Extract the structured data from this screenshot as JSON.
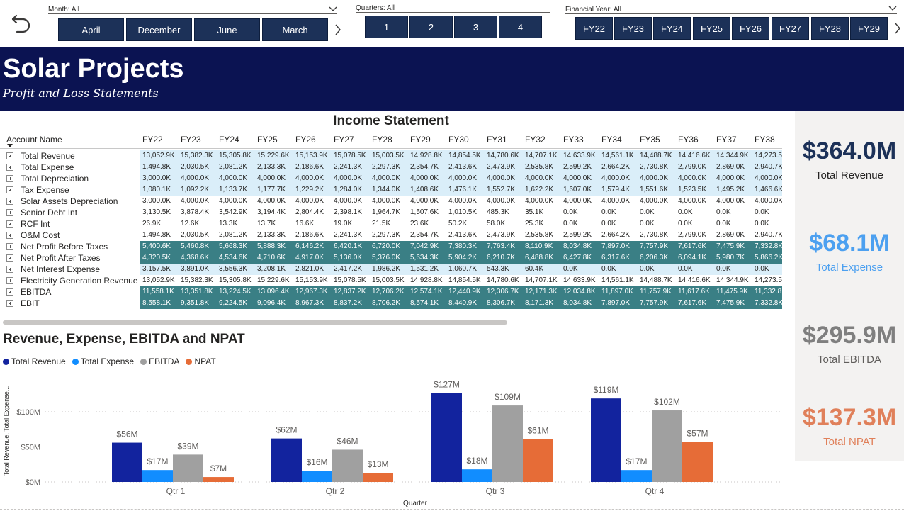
{
  "slicers": {
    "month": {
      "label": "Month: All",
      "buttons": [
        "April",
        "December",
        "June",
        "March"
      ]
    },
    "quarters": {
      "label": "Quarters: All",
      "buttons": [
        "1",
        "2",
        "3",
        "4"
      ]
    },
    "financial_year": {
      "label": "Financial Year: All",
      "buttons": [
        "FY22",
        "FY23",
        "FY24",
        "FY25",
        "FY26",
        "FY27",
        "FY28",
        "FY29"
      ]
    }
  },
  "banner": {
    "title": "Solar Projects",
    "subtitle": "Profit and Loss Statements"
  },
  "income_statement": {
    "title": "Income Statement",
    "account_header": "Account Name",
    "years": [
      "FY22",
      "FY23",
      "FY24",
      "FY25",
      "FY26",
      "FY27",
      "FY28",
      "FY29",
      "FY30",
      "FY31",
      "FY32",
      "FY33",
      "FY34",
      "FY35",
      "FY36",
      "FY37",
      "FY38"
    ],
    "rows": [
      {
        "name": "Total Revenue",
        "style": "light",
        "values": [
          "13,052.9K",
          "15,382.3K",
          "15,305.8K",
          "15,229.6K",
          "15,153.9K",
          "15,078.5K",
          "15,003.5K",
          "14,928.8K",
          "14,854.5K",
          "14,780.6K",
          "14,707.1K",
          "14,633.9K",
          "14,561.1K",
          "14,488.7K",
          "14,416.6K",
          "14,344.9K",
          "14,273.5"
        ]
      },
      {
        "name": "Total Expense",
        "style": "light",
        "values": [
          "1,494.8K",
          "2,030.5K",
          "2,081.2K",
          "2,133.3K",
          "2,186.6K",
          "2,241.3K",
          "2,297.3K",
          "2,354.7K",
          "2,413.6K",
          "2,473.9K",
          "2,535.8K",
          "2,599.2K",
          "2,664.2K",
          "2,730.8K",
          "2,799.0K",
          "2,869.0K",
          "2,940.7K"
        ]
      },
      {
        "name": "Total Depreciation",
        "style": "light",
        "values": [
          "3,000.0K",
          "4,000.0K",
          "4,000.0K",
          "4,000.0K",
          "4,000.0K",
          "4,000.0K",
          "4,000.0K",
          "4,000.0K",
          "4,000.0K",
          "4,000.0K",
          "4,000.0K",
          "4,000.0K",
          "4,000.0K",
          "4,000.0K",
          "4,000.0K",
          "4,000.0K",
          "4,000.0K"
        ]
      },
      {
        "name": "Tax Expense",
        "style": "light",
        "values": [
          "1,080.1K",
          "1,092.2K",
          "1,133.7K",
          "1,177.7K",
          "1,229.2K",
          "1,284.0K",
          "1,344.0K",
          "1,408.6K",
          "1,476.1K",
          "1,552.7K",
          "1,622.2K",
          "1,607.0K",
          "1,579.4K",
          "1,551.6K",
          "1,523.5K",
          "1,495.2K",
          "1,466.6K"
        ]
      },
      {
        "name": "Solar Assets Depreciation",
        "style": "white",
        "values": [
          "3,000.0K",
          "4,000.0K",
          "4,000.0K",
          "4,000.0K",
          "4,000.0K",
          "4,000.0K",
          "4,000.0K",
          "4,000.0K",
          "4,000.0K",
          "4,000.0K",
          "4,000.0K",
          "4,000.0K",
          "4,000.0K",
          "4,000.0K",
          "4,000.0K",
          "4,000.0K",
          "4,000.0K"
        ]
      },
      {
        "name": "Senior Debt Int",
        "style": "white",
        "values": [
          "3,130.5K",
          "3,878.4K",
          "3,542.9K",
          "3,194.4K",
          "2,804.4K",
          "2,398.1K",
          "1,964.7K",
          "1,507.6K",
          "1,010.5K",
          "485.3K",
          "35.1K",
          "0.0K",
          "0.0K",
          "0.0K",
          "0.0K",
          "0.0K",
          "0.0K"
        ]
      },
      {
        "name": "RCF Int",
        "style": "white",
        "values": [
          "26.9K",
          "12.6K",
          "13.3K",
          "13.7K",
          "16.6K",
          "19.0K",
          "21.5K",
          "23.6K",
          "50.2K",
          "58.0K",
          "25.3K",
          "0.0K",
          "0.0K",
          "0.0K",
          "0.0K",
          "0.0K",
          "0.0K"
        ]
      },
      {
        "name": "O&M Cost",
        "style": "white",
        "values": [
          "1,494.8K",
          "2,030.5K",
          "2,081.2K",
          "2,133.3K",
          "2,186.6K",
          "2,241.3K",
          "2,297.3K",
          "2,354.7K",
          "2,413.6K",
          "2,473.9K",
          "2,535.8K",
          "2,599.2K",
          "2,664.2K",
          "2,730.8K",
          "2,799.0K",
          "2,869.0K",
          "2,940.7K"
        ]
      },
      {
        "name": "Net Profit Before Taxes",
        "style": "teal",
        "values": [
          "5,400.6K",
          "5,460.8K",
          "5,668.3K",
          "5,888.3K",
          "6,146.2K",
          "6,420.1K",
          "6,720.0K",
          "7,042.9K",
          "7,380.3K",
          "7,763.4K",
          "8,110.9K",
          "8,034.8K",
          "7,897.0K",
          "7,757.9K",
          "7,617.6K",
          "7,475.9K",
          "7,332.8K"
        ]
      },
      {
        "name": "Net Profit After Taxes",
        "style": "teal",
        "values": [
          "4,320.5K",
          "4,368.6K",
          "4,534.6K",
          "4,710.6K",
          "4,917.0K",
          "5,136.0K",
          "5,376.0K",
          "5,634.3K",
          "5,904.2K",
          "6,210.7K",
          "6,488.8K",
          "6,427.8K",
          "6,317.6K",
          "6,206.3K",
          "6,094.1K",
          "5,980.7K",
          "5,866.2K"
        ]
      },
      {
        "name": "Net Interest Expense",
        "style": "light",
        "values": [
          "3,157.5K",
          "3,891.0K",
          "3,556.3K",
          "3,208.1K",
          "2,821.0K",
          "2,417.2K",
          "1,986.2K",
          "1,531.2K",
          "1,060.7K",
          "543.3K",
          "60.4K",
          "0.0K",
          "0.0K",
          "0.0K",
          "0.0K",
          "0.0K",
          "0.0K"
        ]
      },
      {
        "name": "Electricity Generation Revenue",
        "style": "white",
        "values": [
          "13,052.9K",
          "15,382.3K",
          "15,305.8K",
          "15,229.6K",
          "15,153.9K",
          "15,078.5K",
          "15,003.5K",
          "14,928.8K",
          "14,854.5K",
          "14,780.6K",
          "14,707.1K",
          "14,633.9K",
          "14,561.1K",
          "14,488.7K",
          "14,416.6K",
          "14,344.9K",
          "14,273.5"
        ]
      },
      {
        "name": "EBITDA",
        "style": "teal",
        "values": [
          "11,558.1K",
          "13,351.8K",
          "13,224.5K",
          "13,096.4K",
          "12,967.3K",
          "12,837.2K",
          "12,706.2K",
          "12,574.1K",
          "12,440.9K",
          "12,306.7K",
          "12,171.3K",
          "12,034.8K",
          "11,897.0K",
          "11,757.9K",
          "11,617.6K",
          "11,475.9K",
          "11,332.8"
        ]
      },
      {
        "name": "EBIT",
        "style": "teal",
        "values": [
          "8,558.1K",
          "9,351.8K",
          "9,224.5K",
          "9,096.4K",
          "8,967.3K",
          "8,837.2K",
          "8,706.2K",
          "8,574.1K",
          "8,440.9K",
          "8,306.7K",
          "8,171.3K",
          "8,034.8K",
          "7,897.0K",
          "7,757.9K",
          "7,617.6K",
          "7,475.9K",
          "7,332.8K"
        ]
      }
    ]
  },
  "chart_title": "Revenue, Expense, EBITDA and NPAT",
  "chart_data": {
    "type": "bar",
    "title": "Revenue, Expense, EBITDA and NPAT",
    "categories": [
      "Qtr 1",
      "Qtr 2",
      "Qtr 3",
      "Qtr 4"
    ],
    "series": [
      {
        "name": "Total Revenue",
        "color": "#12239e",
        "values": [
          56,
          62,
          127,
          119
        ],
        "labels": [
          "$56M",
          "$62M",
          "$127M",
          "$119M"
        ]
      },
      {
        "name": "Total Expense",
        "color": "#118dff",
        "values": [
          17,
          16,
          18,
          17
        ],
        "labels": [
          "$17M",
          "$16M",
          "$18M",
          "$17M"
        ]
      },
      {
        "name": "EBITDA",
        "color": "#a0a0a0",
        "values": [
          39,
          46,
          109,
          102
        ],
        "labels": [
          "$39M",
          "$46M",
          "$109M",
          "$102M"
        ]
      },
      {
        "name": "NPAT",
        "color": "#e66c37",
        "values": [
          7,
          13,
          61,
          57
        ],
        "labels": [
          "$7M",
          "$13M",
          "$61M",
          "$57M"
        ]
      }
    ],
    "xlabel": "Quarter",
    "ylabel": "Total Revenue, Total Expense...",
    "ylim": [
      0,
      140
    ],
    "yticks": [
      0,
      50,
      100
    ],
    "ytick_labels": [
      "$0M",
      "$50M",
      "$100M"
    ],
    "grid": true,
    "legend": "top-left"
  },
  "kpis": [
    {
      "value": "$364.0M",
      "label": "Total Revenue",
      "color": "#1c3158"
    },
    {
      "value": "$68.1M",
      "label": "Total Expense",
      "color": "#4ca0f0"
    },
    {
      "value": "$295.9M",
      "label": "Total EBITDA",
      "color": "#7f7f7f"
    },
    {
      "value": "$137.3M",
      "label": "Total NPAT",
      "color": "#e0805a"
    }
  ]
}
